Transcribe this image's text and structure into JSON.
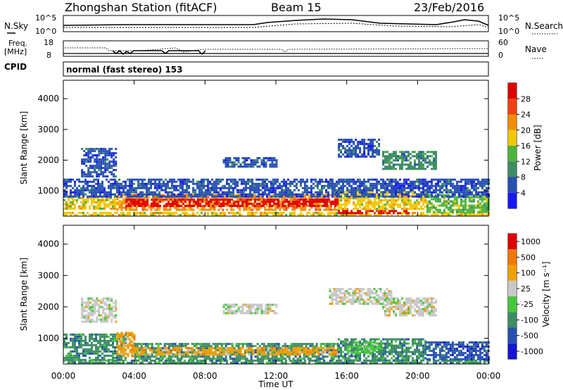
{
  "header": {
    "station": "Zhongshan Station (fitACF)",
    "beam": "Beam 15",
    "date": "23/Feb/2016"
  },
  "noise_panel": {
    "left_label": "N.Sky",
    "left_ticks": [
      "10^5",
      "10^0"
    ],
    "right_ticks": [
      "10^5",
      "10^0"
    ],
    "right_label": "N.Search"
  },
  "freq_panel": {
    "left_label_1": "Freq.",
    "left_label_2": "[MHz]",
    "left_ticks": [
      "18",
      "8"
    ],
    "right_ticks": [
      "60",
      "0"
    ],
    "right_label": "Nave"
  },
  "cpid_panel": {
    "label": "CPID",
    "value": "normal (fast stereo) 153"
  },
  "chart_data": [
    {
      "type": "heatmap",
      "name": "power",
      "ylabel": "Slant Range [km]",
      "y_ticks": [
        "1000",
        "2000",
        "3000",
        "4000"
      ],
      "ylim": [
        180,
        4600
      ],
      "colorbar_label": "Power [dB]",
      "colorbar_ticks": [
        "4",
        "8",
        "12",
        "16",
        "20",
        "24",
        "28"
      ],
      "colors": [
        "#1818f0",
        "#2850b4",
        "#3c8c64",
        "#4cb43c",
        "#f0c800",
        "#f08c00",
        "#f04010",
        "#e00000"
      ],
      "blocks": [
        {
          "t0": 0.0,
          "t1": 24.0,
          "r0": 240,
          "r1": 320,
          "level": 4
        },
        {
          "t0": 0.0,
          "t1": 3.0,
          "r0": 400,
          "r1": 800,
          "level": 4
        },
        {
          "t0": 3.0,
          "t1": 8.0,
          "r0": 400,
          "r1": 900,
          "level": 5
        },
        {
          "t0": 8.0,
          "t1": 15.5,
          "r0": 400,
          "r1": 900,
          "level": 5
        },
        {
          "t0": 15.5,
          "t1": 20.5,
          "r0": 400,
          "r1": 1000,
          "level": 4
        },
        {
          "t0": 20.5,
          "t1": 24.0,
          "r0": 350,
          "r1": 900,
          "level": 3
        },
        {
          "t0": 0.0,
          "t1": 24.0,
          "r0": 800,
          "r1": 1400,
          "level": 1
        },
        {
          "t0": 3.5,
          "t1": 15.5,
          "r0": 500,
          "r1": 750,
          "level": 7
        },
        {
          "t0": 15.5,
          "t1": 19.5,
          "r0": 250,
          "r1": 380,
          "level": 7
        },
        {
          "t0": 1.0,
          "t1": 3.0,
          "r0": 1500,
          "r1": 2400,
          "level": 1
        },
        {
          "t0": 9.0,
          "t1": 12.0,
          "r0": 1800,
          "r1": 2100,
          "level": 1
        },
        {
          "t0": 15.5,
          "t1": 17.8,
          "r0": 2100,
          "r1": 2700,
          "level": 1
        },
        {
          "t0": 18.0,
          "t1": 21.0,
          "r0": 1700,
          "r1": 2300,
          "level": 2
        }
      ]
    },
    {
      "type": "heatmap",
      "name": "velocity",
      "ylabel": "Slant Range [km]",
      "y_ticks": [
        "1000",
        "2000",
        "3000",
        "4000"
      ],
      "ylim": [
        180,
        4600
      ],
      "colorbar_label": "Velocity [m s⁻¹]",
      "colorbar_ticks": [
        "1000",
        "500",
        "100",
        "25",
        "-25",
        "-100",
        "-500",
        "-1000"
      ],
      "colors": [
        "#1414d2",
        "#2850b4",
        "#3c8c64",
        "#46c83c",
        "#c8c8c8",
        "#f0a000",
        "#f07800",
        "#e00000"
      ],
      "blocks": [
        {
          "t0": 0.0,
          "t1": 24.0,
          "r0": 240,
          "r1": 320,
          "level": 2
        },
        {
          "t0": 0.0,
          "t1": 3.5,
          "r0": 320,
          "r1": 1150,
          "level": 2
        },
        {
          "t0": 3.0,
          "t1": 4.0,
          "r0": 400,
          "r1": 1200,
          "level": 5
        },
        {
          "t0": 4.0,
          "t1": 15.5,
          "r0": 350,
          "r1": 850,
          "level": 2
        },
        {
          "t0": 4.0,
          "t1": 15.5,
          "r0": 500,
          "r1": 720,
          "level": 5
        },
        {
          "t0": 15.5,
          "t1": 20.5,
          "r0": 300,
          "r1": 1000,
          "level": 2
        },
        {
          "t0": 16.0,
          "t1": 18.0,
          "r0": 500,
          "r1": 900,
          "level": 3
        },
        {
          "t0": 20.5,
          "t1": 24.0,
          "r0": 350,
          "r1": 900,
          "level": 1
        },
        {
          "t0": 1.0,
          "t1": 3.0,
          "r0": 1500,
          "r1": 2300,
          "level": 4
        },
        {
          "t0": 9.0,
          "t1": 12.0,
          "r0": 1800,
          "r1": 2100,
          "level": 4
        },
        {
          "t0": 15.0,
          "t1": 18.5,
          "r0": 2100,
          "r1": 2600,
          "level": 4
        },
        {
          "t0": 18.0,
          "t1": 21.0,
          "r0": 1700,
          "r1": 2300,
          "level": 4
        }
      ]
    }
  ],
  "x_axis": {
    "ticks": [
      "00:00",
      "04:00",
      "08:00",
      "12:00",
      "16:00",
      "20:00",
      "00:00"
    ],
    "label": "Time UT"
  }
}
